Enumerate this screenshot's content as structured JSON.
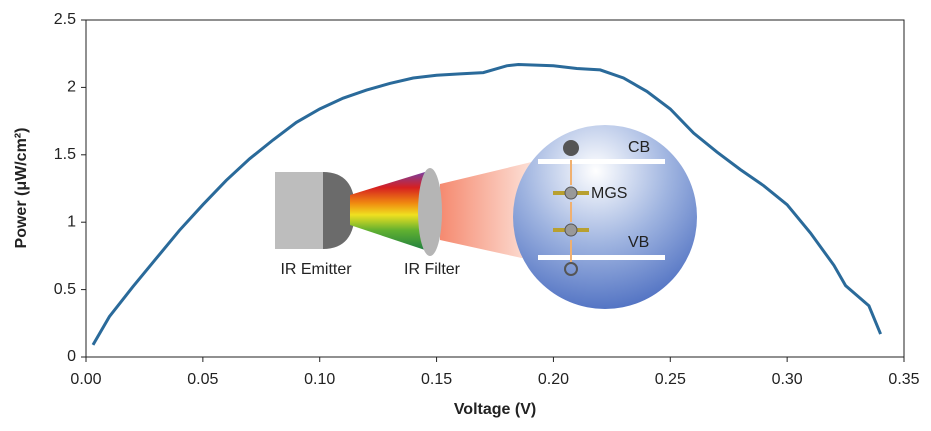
{
  "chart_data": {
    "type": "line",
    "x_label": "Voltage (V)",
    "y_label": "Power (μW/cm²)",
    "xlim": [
      0,
      0.35
    ],
    "ylim": [
      0,
      2.5
    ],
    "xticks": [
      {
        "value": 0,
        "label": "0.00"
      },
      {
        "value": 0.05,
        "label": "0.05"
      },
      {
        "value": 0.1,
        "label": "0.10"
      },
      {
        "value": 0.15,
        "label": "0.15"
      },
      {
        "value": 0.2,
        "label": "0.20"
      },
      {
        "value": 0.25,
        "label": "0.25"
      },
      {
        "value": 0.3,
        "label": "0.30"
      },
      {
        "value": 0.35,
        "label": "0.35"
      }
    ],
    "yticks": [
      0,
      0.5,
      1,
      1.5,
      2,
      2.5
    ],
    "color": "#2a6a9a",
    "x": [
      0.003,
      0.01,
      0.02,
      0.03,
      0.04,
      0.05,
      0.06,
      0.07,
      0.08,
      0.09,
      0.1,
      0.11,
      0.12,
      0.13,
      0.14,
      0.15,
      0.16,
      0.17,
      0.18,
      0.185,
      0.2,
      0.21,
      0.22,
      0.23,
      0.24,
      0.25,
      0.26,
      0.27,
      0.28,
      0.29,
      0.3,
      0.31,
      0.32,
      0.325,
      0.335,
      0.34
    ],
    "values": [
      0.09,
      0.3,
      0.52,
      0.73,
      0.94,
      1.13,
      1.31,
      1.47,
      1.61,
      1.74,
      1.84,
      1.92,
      1.98,
      2.03,
      2.07,
      2.09,
      2.1,
      2.11,
      2.16,
      2.17,
      2.16,
      2.14,
      2.13,
      2.07,
      1.97,
      1.84,
      1.66,
      1.52,
      1.39,
      1.27,
      1.13,
      0.92,
      0.68,
      0.53,
      0.38,
      0.17
    ]
  },
  "inset": {
    "emitter": "IR Emitter",
    "filter": "IR Filter",
    "cb": "CB",
    "mgs": "MGS",
    "vb": "VB"
  }
}
